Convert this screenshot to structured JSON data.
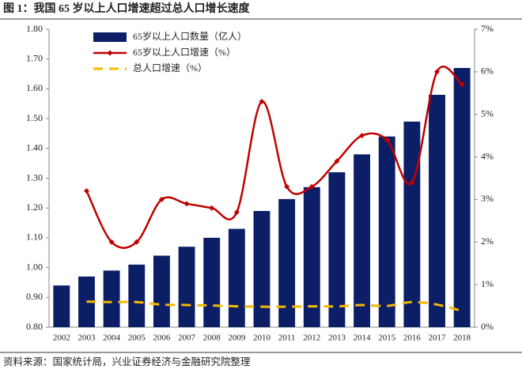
{
  "chart_data": {
    "type": "bar_line",
    "title": "图 1：我国 65 岁以上人口增速超过总人口增长速度",
    "source": "资料来源：国家统计局，兴业证券经济与金融研究院整理",
    "categories": [
      "2002",
      "2003",
      "2004",
      "2005",
      "2006",
      "2007",
      "2008",
      "2009",
      "2010",
      "2011",
      "2012",
      "2013",
      "2014",
      "2015",
      "2016",
      "2017",
      "2018"
    ],
    "series": [
      {
        "name": "65岁以上人口数量（亿人）",
        "type": "bar",
        "color": "#0c1f66",
        "values": [
          0.94,
          0.97,
          0.99,
          1.01,
          1.04,
          1.07,
          1.1,
          1.13,
          1.19,
          1.23,
          1.27,
          1.32,
          1.38,
          1.44,
          1.49,
          1.58,
          1.67
        ]
      },
      {
        "name": "65岁以上人口增速（%）",
        "type": "line",
        "axis": "y2",
        "color": "#c00000",
        "dash": false,
        "markers": true,
        "values": [
          null,
          3.2,
          2.0,
          2.0,
          3.0,
          2.9,
          2.8,
          2.7,
          5.3,
          3.3,
          3.3,
          3.9,
          4.5,
          4.4,
          3.4,
          6.0,
          5.7
        ]
      },
      {
        "name": "总人口增速（%）",
        "type": "line",
        "axis": "y2",
        "color": "#f5b800",
        "dash": true,
        "markers": false,
        "values": [
          null,
          0.6,
          0.59,
          0.59,
          0.53,
          0.52,
          0.51,
          0.49,
          0.48,
          0.48,
          0.49,
          0.49,
          0.52,
          0.5,
          0.59,
          0.53,
          0.38
        ]
      }
    ],
    "ylim": [
      0.8,
      1.8
    ],
    "yticks": [
      {
        "value": 0.8,
        "label": "0.80"
      },
      {
        "value": 0.9,
        "label": "0.90"
      },
      {
        "value": 1.0,
        "label": "1.00"
      },
      {
        "value": 1.1,
        "label": "1.10"
      },
      {
        "value": 1.2,
        "label": "1.20"
      },
      {
        "value": 1.3,
        "label": "1.30"
      },
      {
        "value": 1.4,
        "label": "1.40"
      },
      {
        "value": 1.5,
        "label": "1.50"
      },
      {
        "value": 1.6,
        "label": "1.60"
      },
      {
        "value": 1.7,
        "label": "1.70"
      },
      {
        "value": 1.8,
        "label": "1.80"
      }
    ],
    "y2lim": [
      0,
      7
    ],
    "y2ticks": [
      {
        "value": 0,
        "label": "0%"
      },
      {
        "value": 1,
        "label": "1%"
      },
      {
        "value": 2,
        "label": "2%"
      },
      {
        "value": 3,
        "label": "3%"
      },
      {
        "value": 4,
        "label": "4%"
      },
      {
        "value": 5,
        "label": "5%"
      },
      {
        "value": 6,
        "label": "6%"
      },
      {
        "value": 7,
        "label": "7%"
      }
    ],
    "legend": "upper left",
    "grid": false
  }
}
